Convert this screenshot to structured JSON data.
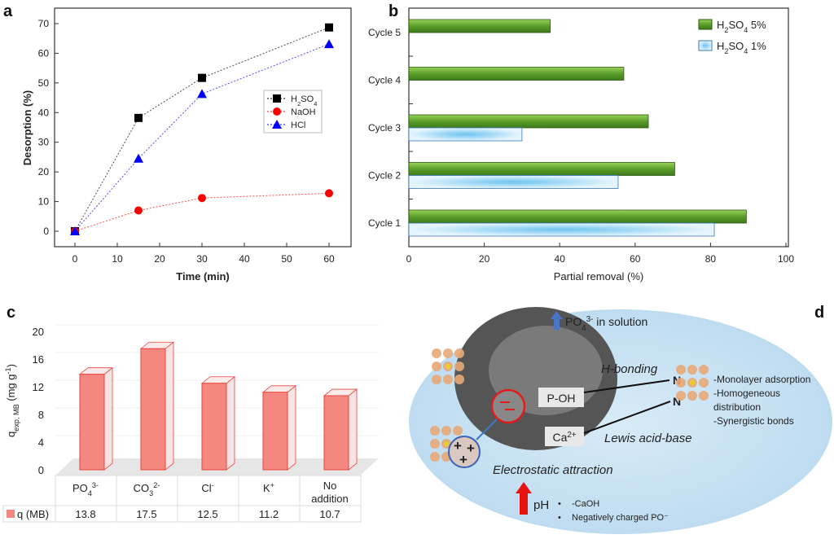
{
  "chart_data": [
    {
      "panel": "a",
      "type": "line",
      "xlabel": "Time (min)",
      "ylabel": "Desorption (%)",
      "xlim": [
        -5,
        65
      ],
      "ylim": [
        -5,
        75
      ],
      "xticks": [
        0,
        10,
        20,
        30,
        40,
        50,
        60
      ],
      "yticks": [
        0,
        10,
        20,
        30,
        40,
        50,
        60,
        70
      ],
      "legend_position": "center-right",
      "x": [
        0,
        15,
        30,
        60
      ],
      "series": [
        {
          "name": "H2SO4",
          "label_main": "H",
          "label_sub1": "2",
          "label_mid": "SO",
          "label_sub2": "4",
          "color": "#000000",
          "marker": "square",
          "values": [
            0,
            38.2,
            51.7,
            68.7
          ]
        },
        {
          "name": "NaOH",
          "color": "#ff0000",
          "marker": "circle",
          "values": [
            0,
            7,
            11.2,
            12.8
          ]
        },
        {
          "name": "HCl",
          "color": "#0000ff",
          "marker": "triangle",
          "values": [
            0,
            24.5,
            46.3,
            63.1
          ]
        }
      ]
    },
    {
      "panel": "b",
      "type": "bar",
      "orientation": "horizontal",
      "xlabel": "Partial removal (%)",
      "xlim": [
        0,
        100
      ],
      "xticks": [
        0,
        20,
        40,
        60,
        80,
        100
      ],
      "legend_position": "top-right",
      "categories": [
        "Cycle 1",
        "Cycle 2",
        "Cycle 3",
        "Cycle 4",
        "Cycle 5"
      ],
      "series": [
        {
          "name": "H2SO4 5%",
          "label_main": "H",
          "label_sub1": "2",
          "label_mid": "SO",
          "label_sub2": "4",
          "label_end": " 5%",
          "color": "#6aa832",
          "values": [
            89.5,
            70.5,
            63.5,
            57,
            37.5
          ]
        },
        {
          "name": "H2SO4 1%",
          "label_main": "H",
          "label_sub1": "2",
          "label_mid": "SO",
          "label_sub2": "4",
          "label_end": " 1%",
          "color": "#bfe3f7",
          "values": [
            81,
            55.5,
            30,
            null,
            null
          ]
        }
      ]
    },
    {
      "panel": "c",
      "type": "bar",
      "ylabel": "q",
      "ylabel_sub": "exp, MB",
      "ylabel_unit": " (mg g",
      "ylabel_sup": "-1",
      "ylabel_end": ")",
      "ylim": [
        0,
        20
      ],
      "yticks": [
        0,
        4,
        8,
        12,
        16,
        20
      ],
      "categories": [
        {
          "base": "PO",
          "sub": "4",
          "sup": "3-"
        },
        {
          "base": "CO",
          "sub": "3",
          "sup": "2-"
        },
        {
          "base": "Cl",
          "sub": "",
          "sup": "-"
        },
        {
          "base": "K",
          "sub": "",
          "sup": "+"
        },
        {
          "base": "No addition",
          "sub": "",
          "sup": ""
        }
      ],
      "series": [
        {
          "name": "q (MB)",
          "color": "#f4877f",
          "values": [
            13.8,
            17.5,
            12.5,
            11.2,
            10.7
          ]
        }
      ]
    }
  ],
  "panels": {
    "a": "a",
    "b": "b",
    "c": "c",
    "d": "d"
  },
  "diagram": {
    "top_label": "PO",
    "top_sub": "4",
    "top_sup": "3-",
    "top_end": " in solution",
    "poh": "P-OH",
    "ca": "Ca",
    "ca_sup": "2+",
    "hbond": "H-bonding",
    "lewis": "Lewis acid-base",
    "electro": "Electrostatic attraction",
    "n1": "N",
    "n2": "N",
    "notes": [
      "-Monolayer adsorption",
      "-Homogeneous",
      "distribution",
      "-Synergistic bonds"
    ],
    "ph": "pH",
    "bullets": [
      "-CaOH",
      "Negatively charged PO⁻"
    ]
  }
}
